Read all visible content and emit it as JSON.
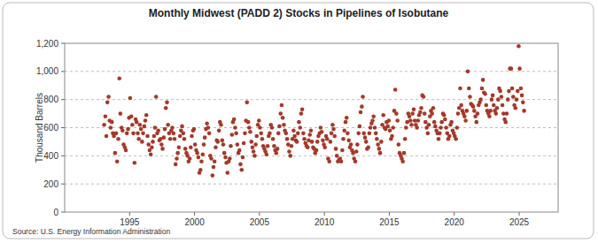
{
  "chart_data": {
    "type": "scatter",
    "title": "Monthly Midwest (PADD 2) Stocks in Pipelines of Isobutane",
    "y_label": "Thousand Barrels",
    "source": "Source: U.S. Energy Information Administration",
    "color": "#a33a2a",
    "marker": "circle",
    "grid": true,
    "xlim": [
      1990,
      2028
    ],
    "xticks": [
      1995,
      2000,
      2005,
      2010,
      2015,
      2020,
      2025
    ],
    "ylim": [
      0,
      1200
    ],
    "yticks": [
      0,
      200,
      400,
      600,
      800,
      {
        "value": 1000,
        "label": "1,000"
      },
      {
        "value": 1200,
        "label": "1,200"
      }
    ],
    "x": [
      1993.04,
      1993.13,
      1993.21,
      1993.29,
      1993.38,
      1993.46,
      1993.54,
      1993.63,
      1993.71,
      1993.79,
      1993.88,
      1993.96,
      1994.04,
      1994.13,
      1994.21,
      1994.29,
      1994.38,
      1994.46,
      1994.54,
      1994.63,
      1994.71,
      1994.79,
      1994.88,
      1994.96,
      1995.04,
      1995.13,
      1995.21,
      1995.29,
      1995.38,
      1995.46,
      1995.54,
      1995.63,
      1995.71,
      1995.79,
      1995.88,
      1995.96,
      1996.04,
      1996.13,
      1996.21,
      1996.29,
      1996.38,
      1996.46,
      1996.54,
      1996.63,
      1996.71,
      1996.79,
      1996.88,
      1996.96,
      1997.04,
      1997.13,
      1997.21,
      1997.29,
      1997.38,
      1997.46,
      1997.54,
      1997.63,
      1997.71,
      1997.79,
      1997.88,
      1997.96,
      1998.04,
      1998.13,
      1998.21,
      1998.29,
      1998.38,
      1998.46,
      1998.54,
      1998.63,
      1998.71,
      1998.79,
      1998.88,
      1998.96,
      1999.04,
      1999.13,
      1999.21,
      1999.29,
      1999.38,
      1999.46,
      1999.54,
      1999.63,
      1999.71,
      1999.79,
      1999.88,
      1999.96,
      2000.04,
      2000.13,
      2000.21,
      2000.29,
      2000.38,
      2000.46,
      2000.54,
      2000.63,
      2000.71,
      2000.79,
      2000.88,
      2000.96,
      2001.04,
      2001.13,
      2001.21,
      2001.29,
      2001.38,
      2001.46,
      2001.54,
      2001.63,
      2001.71,
      2001.79,
      2001.88,
      2001.96,
      2002.04,
      2002.13,
      2002.21,
      2002.29,
      2002.38,
      2002.46,
      2002.54,
      2002.63,
      2002.71,
      2002.79,
      2002.88,
      2002.96,
      2003.04,
      2003.13,
      2003.21,
      2003.29,
      2003.38,
      2003.46,
      2003.54,
      2003.63,
      2003.71,
      2003.79,
      2003.88,
      2003.96,
      2004.04,
      2004.13,
      2004.21,
      2004.29,
      2004.38,
      2004.46,
      2004.54,
      2004.63,
      2004.71,
      2004.79,
      2004.88,
      2004.96,
      2005.04,
      2005.13,
      2005.21,
      2005.29,
      2005.38,
      2005.46,
      2005.54,
      2005.63,
      2005.71,
      2005.79,
      2005.88,
      2005.96,
      2006.04,
      2006.13,
      2006.21,
      2006.29,
      2006.38,
      2006.46,
      2006.54,
      2006.63,
      2006.71,
      2006.79,
      2006.88,
      2006.96,
      2007.04,
      2007.13,
      2007.21,
      2007.29,
      2007.38,
      2007.46,
      2007.54,
      2007.63,
      2007.71,
      2007.79,
      2007.88,
      2007.96,
      2008.04,
      2008.13,
      2008.21,
      2008.29,
      2008.38,
      2008.46,
      2008.54,
      2008.63,
      2008.71,
      2008.79,
      2008.88,
      2008.96,
      2009.04,
      2009.13,
      2009.21,
      2009.29,
      2009.38,
      2009.46,
      2009.54,
      2009.63,
      2009.71,
      2009.79,
      2009.88,
      2009.96,
      2010.04,
      2010.13,
      2010.21,
      2010.29,
      2010.38,
      2010.46,
      2010.54,
      2010.63,
      2010.71,
      2010.79,
      2010.88,
      2010.96,
      2011.04,
      2011.13,
      2011.21,
      2011.29,
      2011.38,
      2011.46,
      2011.54,
      2011.63,
      2011.71,
      2011.79,
      2011.88,
      2011.96,
      2012.04,
      2012.13,
      2012.21,
      2012.29,
      2012.38,
      2012.46,
      2012.54,
      2012.63,
      2012.71,
      2012.79,
      2012.88,
      2012.96,
      2013.04,
      2013.13,
      2013.21,
      2013.29,
      2013.38,
      2013.46,
      2013.54,
      2013.63,
      2013.71,
      2013.79,
      2013.88,
      2013.96,
      2014.04,
      2014.13,
      2014.21,
      2014.29,
      2014.38,
      2014.46,
      2014.54,
      2014.63,
      2014.71,
      2014.79,
      2014.88,
      2014.96,
      2015.04,
      2015.13,
      2015.21,
      2015.29,
      2015.38,
      2015.46,
      2015.54,
      2015.63,
      2015.71,
      2015.79,
      2015.88,
      2015.96,
      2016.04,
      2016.13,
      2016.21,
      2016.29,
      2016.38,
      2016.46,
      2016.54,
      2016.63,
      2016.71,
      2016.79,
      2016.88,
      2016.96,
      2017.04,
      2017.13,
      2017.21,
      2017.29,
      2017.38,
      2017.46,
      2017.54,
      2017.63,
      2017.71,
      2017.79,
      2017.88,
      2017.96,
      2018.04,
      2018.13,
      2018.21,
      2018.29,
      2018.38,
      2018.46,
      2018.54,
      2018.63,
      2018.71,
      2018.79,
      2018.88,
      2018.96,
      2019.04,
      2019.13,
      2019.21,
      2019.29,
      2019.38,
      2019.46,
      2019.54,
      2019.63,
      2019.71,
      2019.79,
      2019.88,
      2019.96,
      2020.04,
      2020.13,
      2020.21,
      2020.29,
      2020.38,
      2020.46,
      2020.54,
      2020.63,
      2020.71,
      2020.79,
      2020.88,
      2020.96,
      2021.04,
      2021.13,
      2021.21,
      2021.29,
      2021.38,
      2021.46,
      2021.54,
      2021.63,
      2021.71,
      2021.79,
      2021.88,
      2021.96,
      2022.04,
      2022.13,
      2022.21,
      2022.29,
      2022.38,
      2022.46,
      2022.54,
      2022.63,
      2022.71,
      2022.79,
      2022.88,
      2022.96,
      2023.04,
      2023.13,
      2023.21,
      2023.29,
      2023.38,
      2023.46,
      2023.54,
      2023.63,
      2023.71,
      2023.79,
      2023.88,
      2023.96,
      2024.04,
      2024.13,
      2024.21,
      2024.29,
      2024.38,
      2024.46,
      2024.54,
      2024.63,
      2024.71,
      2024.79,
      2024.88,
      2024.96,
      2025.04,
      2025.13,
      2025.21,
      2025.29,
      2025.38
    ],
    "values": [
      620,
      680,
      540,
      780,
      820,
      650,
      600,
      640,
      560,
      540,
      420,
      560,
      360,
      520,
      950,
      700,
      600,
      580,
      480,
      460,
      440,
      560,
      590,
      670,
      810,
      680,
      620,
      560,
      350,
      660,
      640,
      560,
      520,
      620,
      590,
      500,
      560,
      610,
      650,
      690,
      540,
      480,
      440,
      410,
      460,
      500,
      540,
      600,
      820,
      560,
      580,
      510,
      520,
      480,
      450,
      530,
      590,
      740,
      780,
      620,
      560,
      520,
      580,
      600,
      560,
      520,
      340,
      380,
      420,
      460,
      540,
      580,
      610,
      560,
      520,
      450,
      420,
      400,
      360,
      380,
      460,
      540,
      580,
      590,
      480,
      440,
      420,
      390,
      280,
      300,
      360,
      410,
      480,
      530,
      590,
      630,
      600,
      560,
      400,
      380,
      260,
      320,
      360,
      460,
      510,
      500,
      580,
      640,
      620,
      510,
      480,
      420,
      390,
      350,
      280,
      360,
      380,
      470,
      550,
      640,
      660,
      600,
      560,
      480,
      420,
      440,
      340,
      300,
      390,
      490,
      560,
      650,
      780,
      640,
      600,
      570,
      500,
      460,
      430,
      400,
      480,
      540,
      620,
      650,
      600,
      560,
      520,
      470,
      450,
      430,
      410,
      470,
      540,
      560,
      620,
      600,
      520,
      470,
      440,
      420,
      450,
      560,
      610,
      700,
      760,
      670,
      620,
      580,
      560,
      520,
      480,
      430,
      400,
      470,
      520,
      580,
      540,
      510,
      500,
      560,
      640,
      600,
      700,
      730,
      560,
      520,
      490,
      470,
      460,
      510,
      550,
      580,
      500,
      460,
      450,
      420,
      440,
      500,
      540,
      560,
      600,
      570,
      510,
      480,
      460,
      540,
      520,
      380,
      360,
      500,
      560,
      620,
      590,
      540,
      450,
      400,
      360,
      370,
      380,
      360,
      440,
      520,
      580,
      640,
      670,
      560,
      510,
      460,
      480,
      440,
      420,
      380,
      360,
      430,
      480,
      560,
      610,
      710,
      750,
      820,
      560,
      530,
      500,
      450,
      460,
      560,
      600,
      630,
      650,
      680,
      600,
      560,
      520,
      480,
      450,
      420,
      500,
      620,
      690,
      600,
      590,
      640,
      610,
      650,
      580,
      520,
      540,
      600,
      720,
      870,
      700,
      650,
      480,
      420,
      400,
      380,
      360,
      420,
      520,
      600,
      640,
      700,
      680,
      650,
      620,
      700,
      730,
      650,
      620,
      600,
      650,
      690,
      710,
      740,
      830,
      820,
      700,
      640,
      600,
      560,
      620,
      680,
      720,
      700,
      740,
      640,
      610,
      580,
      560,
      520,
      560,
      600,
      640,
      700,
      690,
      660,
      600,
      560,
      520,
      540,
      620,
      640,
      580,
      560,
      540,
      520,
      600,
      700,
      740,
      880,
      760,
      720,
      700,
      680,
      650,
      720,
      1000,
      880,
      820,
      770,
      760,
      750,
      720,
      680,
      640,
      700,
      760,
      780,
      800,
      880,
      940,
      850,
      840,
      760,
      720,
      700,
      680,
      720,
      800,
      830,
      760,
      720,
      700,
      740,
      800,
      880,
      860,
      820,
      760,
      700,
      660,
      640,
      700,
      800,
      860,
      1020,
      1020,
      880,
      820,
      760,
      740,
      800,
      860,
      1180,
      1020,
      880,
      830,
      780,
      720
    ]
  }
}
